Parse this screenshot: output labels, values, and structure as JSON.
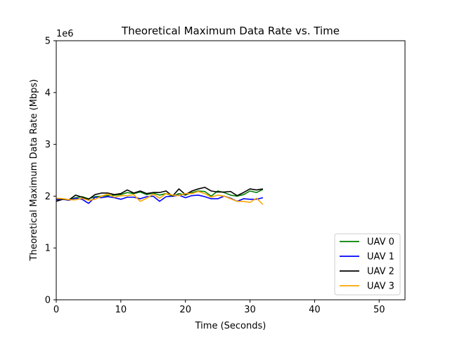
{
  "chart_data": {
    "type": "line",
    "title": "Theoretical Maximum Data Rate vs. Time",
    "xlabel": "Time (Seconds)",
    "ylabel": "Theoretical Maximum Data Rate (Mbps)",
    "y_offset_label": "1e6",
    "xlim": [
      0,
      54
    ],
    "ylim": [
      0,
      5
    ],
    "y_scale_factor": 1000000,
    "x_ticks": [
      0,
      10,
      20,
      30,
      40,
      50
    ],
    "y_ticks": [
      0,
      1,
      2,
      3,
      4,
      5
    ],
    "grid": false,
    "legend_position": "lower-right",
    "x": [
      0,
      1,
      2,
      3,
      4,
      5,
      6,
      7,
      8,
      9,
      10,
      11,
      12,
      13,
      14,
      15,
      16,
      17,
      18,
      19,
      20,
      21,
      22,
      23,
      24,
      25,
      26,
      27,
      28,
      29,
      30,
      31,
      32
    ],
    "series": [
      {
        "name": "UAV 0",
        "color": "#008000",
        "values": [
          1.94,
          1.95,
          1.93,
          1.97,
          1.99,
          1.95,
          1.99,
          2.0,
          2.01,
          2.02,
          2.03,
          2.07,
          2.05,
          2.08,
          2.03,
          2.06,
          2.02,
          2.05,
          2.0,
          2.05,
          2.02,
          2.07,
          2.1,
          2.09,
          2.0,
          2.1,
          2.07,
          2.02,
          2.0,
          2.03,
          2.1,
          2.07,
          2.13
        ]
      },
      {
        "name": "UAV 1",
        "color": "#0000ff",
        "values": [
          1.93,
          1.94,
          1.92,
          1.96,
          1.94,
          1.86,
          1.98,
          1.97,
          1.99,
          1.97,
          1.94,
          1.98,
          1.98,
          1.95,
          1.99,
          2.0,
          1.9,
          1.99,
          2.0,
          2.02,
          1.97,
          2.01,
          2.02,
          1.99,
          1.95,
          1.95,
          2.0,
          1.96,
          1.9,
          1.95,
          1.94,
          1.94,
          1.97
        ]
      },
      {
        "name": "UAV 2",
        "color": "#000000",
        "values": [
          1.9,
          1.94,
          1.93,
          2.02,
          1.98,
          1.94,
          2.03,
          2.06,
          2.06,
          2.03,
          2.05,
          2.12,
          2.06,
          2.1,
          2.05,
          2.07,
          2.07,
          2.1,
          2.0,
          2.14,
          2.03,
          2.1,
          2.14,
          2.17,
          2.1,
          2.08,
          2.08,
          2.09,
          2.01,
          2.07,
          2.14,
          2.12,
          2.14
        ]
      },
      {
        "name": "UAV 3",
        "color": "#ffa500",
        "values": [
          1.96,
          1.95,
          1.93,
          1.93,
          1.96,
          1.92,
          1.94,
          2.0,
          2.04,
          1.98,
          2.01,
          2.01,
          2.03,
          1.9,
          1.96,
          2.04,
          1.96,
          2.05,
          2.02,
          2.01,
          2.05,
          2.05,
          2.09,
          2.05,
          1.98,
          2.02,
          2.0,
          1.95,
          1.9,
          1.9,
          1.88,
          1.96,
          1.84
        ]
      }
    ]
  }
}
